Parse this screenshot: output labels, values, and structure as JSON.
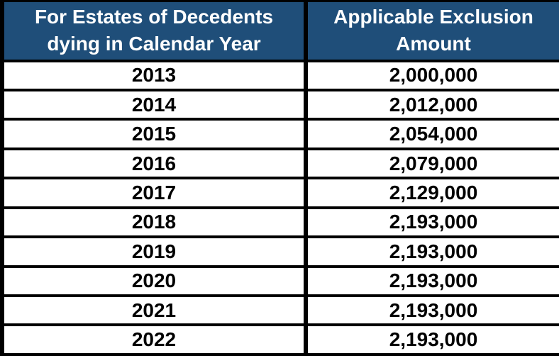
{
  "table": {
    "header": {
      "col1": {
        "line1": "For Estates of Decedents",
        "line2": "dying in Calendar Year"
      },
      "col2": {
        "line1": "Applicable Exclusion",
        "line2": "Amount"
      }
    },
    "rows": [
      {
        "year": "2013",
        "amount": "2,000,000"
      },
      {
        "year": "2014",
        "amount": "2,012,000"
      },
      {
        "year": "2015",
        "amount": "2,054,000"
      },
      {
        "year": "2016",
        "amount": "2,079,000"
      },
      {
        "year": "2017",
        "amount": "2,129,000"
      },
      {
        "year": "2018",
        "amount": "2,193,000"
      },
      {
        "year": "2019",
        "amount": "2,193,000"
      },
      {
        "year": "2020",
        "amount": "2,193,000"
      },
      {
        "year": "2021",
        "amount": "2,193,000"
      },
      {
        "year": "2022",
        "amount": "2,193,000"
      }
    ]
  },
  "colors": {
    "header_bg": "#1F4E79",
    "header_text": "#FFFFFF",
    "border": "#000000",
    "body_bg": "#FFFFFF",
    "body_text": "#000000"
  },
  "chart_data": {
    "type": "table",
    "columns": [
      "For Estates of Decedents dying in Calendar Year",
      "Applicable Exclusion Amount"
    ],
    "rows": [
      [
        "2013",
        "2,000,000"
      ],
      [
        "2014",
        "2,012,000"
      ],
      [
        "2015",
        "2,054,000"
      ],
      [
        "2016",
        "2,079,000"
      ],
      [
        "2017",
        "2,129,000"
      ],
      [
        "2018",
        "2,193,000"
      ],
      [
        "2019",
        "2,193,000"
      ],
      [
        "2020",
        "2,193,000"
      ],
      [
        "2021",
        "2,193,000"
      ],
      [
        "2022",
        "2,193,000"
      ]
    ]
  }
}
